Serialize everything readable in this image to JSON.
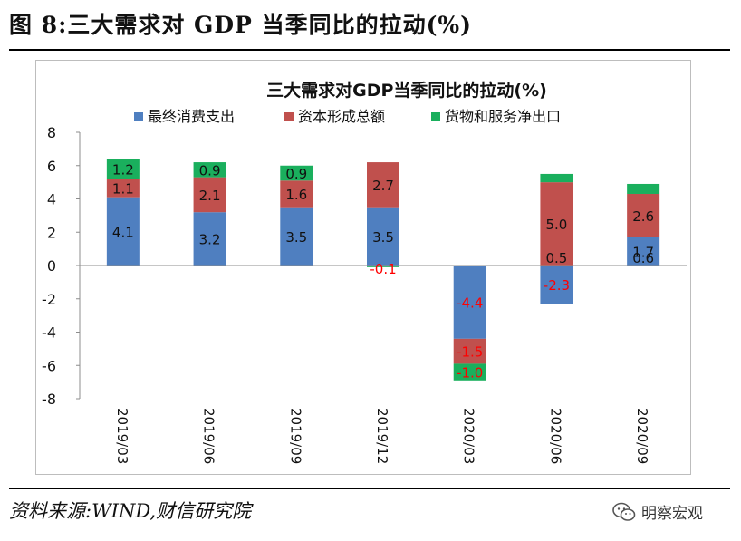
{
  "figure": {
    "title": "图 8:三大需求对 GDP 当季同比的拉动(%)",
    "source": "资料来源:WIND,财信研究院",
    "watermark": "明察宏观",
    "watermark_icon": "wechat-icon"
  },
  "chart_data": {
    "type": "bar",
    "stacked": true,
    "title": "三大需求对GDP当季同比的拉动(%)",
    "categories": [
      "2019/03",
      "2019/06",
      "2019/09",
      "2019/12",
      "2020/03",
      "2020/06",
      "2020/09"
    ],
    "series": [
      {
        "name": "最终消费支出",
        "color": "#4f7fc0",
        "values": [
          4.1,
          3.2,
          3.5,
          3.5,
          -4.4,
          -2.3,
          1.7
        ]
      },
      {
        "name": "资本形成总额",
        "color": "#c0504d",
        "values": [
          1.1,
          2.1,
          1.6,
          2.7,
          -1.5,
          5.0,
          2.6
        ]
      },
      {
        "name": "货物和服务净出口",
        "color": "#1aaf5d",
        "values": [
          1.2,
          0.9,
          0.9,
          -0.1,
          -1.0,
          0.5,
          0.6
        ]
      }
    ],
    "data_labels": [
      [
        "4.1",
        "3.2",
        "3.5",
        "3.5",
        "-4.4",
        "-2.3",
        "1.7"
      ],
      [
        "1.1",
        "2.1",
        "1.6",
        "2.7",
        "-1.5",
        "5.0",
        "2.6"
      ],
      [
        "1.2",
        "0.9",
        "0.9",
        "-0.1",
        "-1.0",
        "0.5",
        "0.6"
      ]
    ],
    "ylim": [
      -8,
      8
    ],
    "yticks": [
      "8",
      "6",
      "4",
      "2",
      "0",
      "-2",
      "-4",
      "-6",
      "-8"
    ],
    "legend_position": "top",
    "grid": false,
    "negative_label_color": "#ff0000"
  }
}
